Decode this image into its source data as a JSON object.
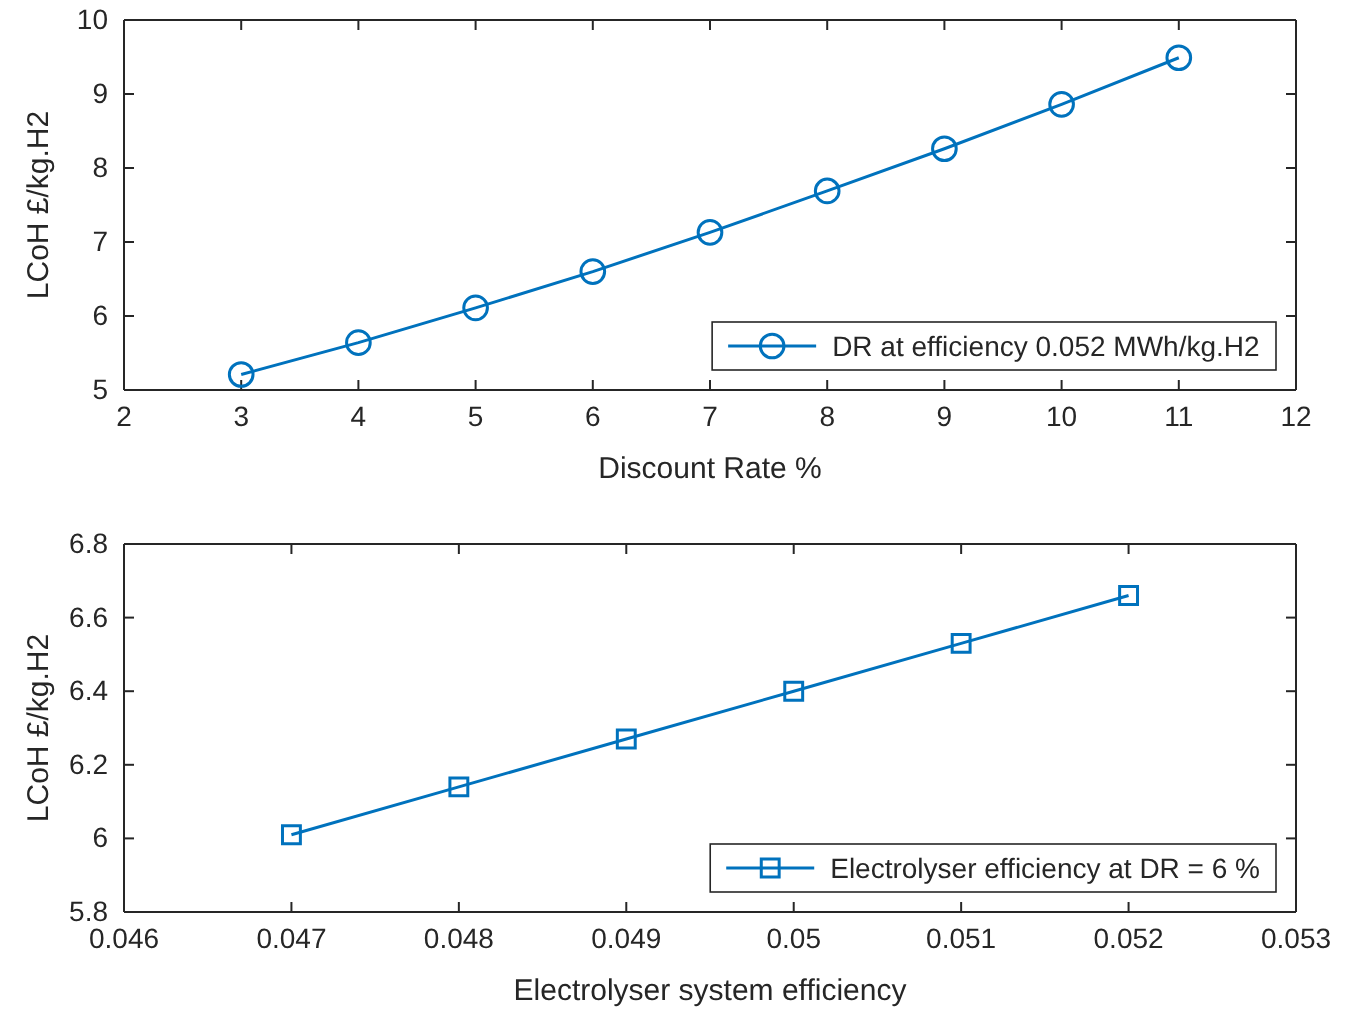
{
  "chart_data": [
    {
      "type": "line",
      "xlabel": "Discount Rate %",
      "ylabel": "LCoH £/kg.H2",
      "x": [
        3,
        4,
        5,
        6,
        7,
        8,
        9,
        10,
        11
      ],
      "xlim": [
        2,
        12
      ],
      "xticks": [
        2,
        3,
        4,
        5,
        6,
        7,
        8,
        9,
        10,
        11,
        12
      ],
      "ylim": [
        5,
        10
      ],
      "yticks": [
        5,
        6,
        7,
        8,
        9,
        10
      ],
      "marker": "circle",
      "legend": "bottom right",
      "grid": false,
      "series": [
        {
          "name": "DR at efficiency 0.052 MWh/kg.H2",
          "color": "#0072bd",
          "values": [
            5.21,
            5.64,
            6.11,
            6.6,
            7.13,
            7.69,
            8.26,
            8.86,
            9.49
          ]
        }
      ]
    },
    {
      "type": "line",
      "xlabel": "Electrolyser system efficiency",
      "ylabel": "LCoH £/kg.H2",
      "x": [
        0.047,
        0.048,
        0.049,
        0.05,
        0.051,
        0.052
      ],
      "xlim": [
        0.046,
        0.053
      ],
      "xticks": [
        0.046,
        0.047,
        0.048,
        0.049,
        0.05,
        0.051,
        0.052,
        0.053
      ],
      "ylim": [
        5.8,
        6.8
      ],
      "yticks": [
        5.8,
        6,
        6.2,
        6.4,
        6.6,
        6.8
      ],
      "marker": "square",
      "legend": "bottom right",
      "grid": false,
      "series": [
        {
          "name": "Electrolyser efficiency at DR = 6 %",
          "color": "#0072bd",
          "values": [
            6.01,
            6.14,
            6.27,
            6.4,
            6.53,
            6.66
          ]
        }
      ]
    }
  ]
}
